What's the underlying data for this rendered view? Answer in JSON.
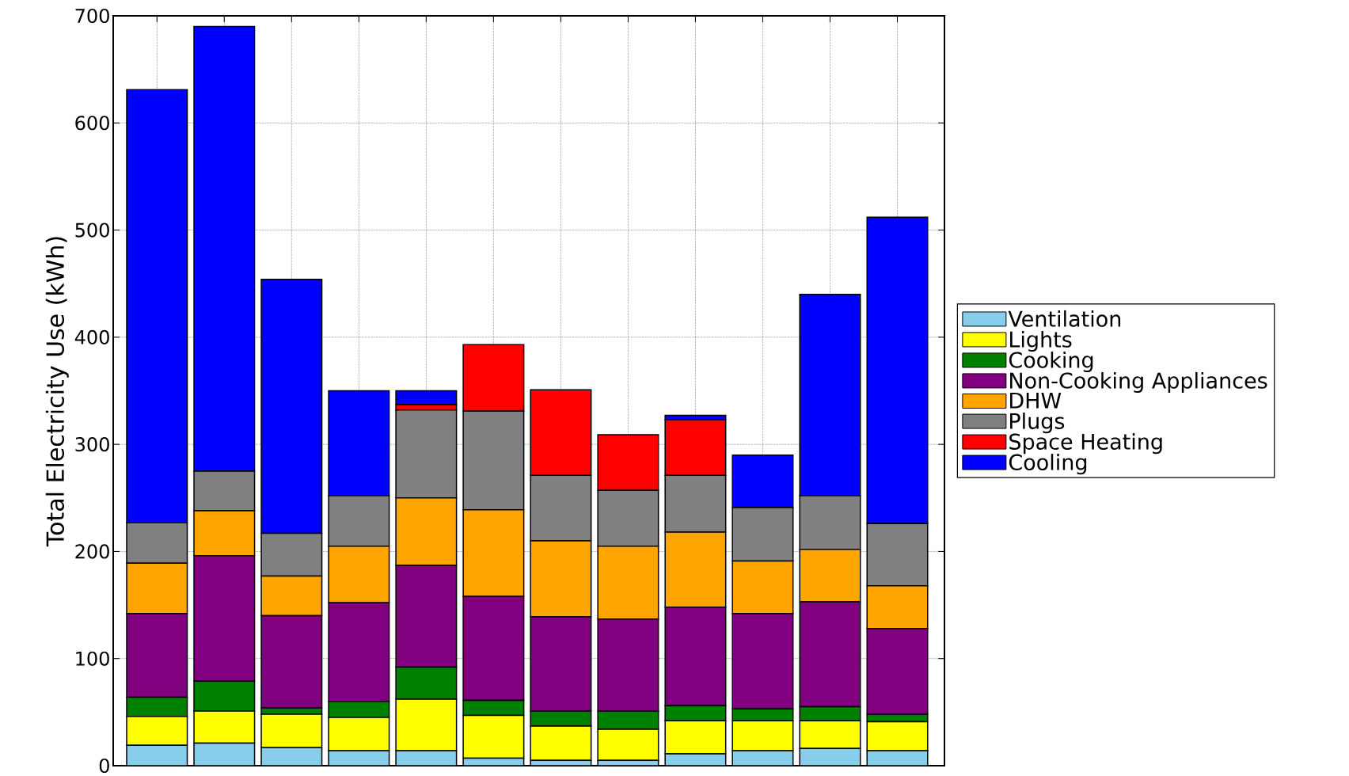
{
  "chart_data": {
    "type": "bar",
    "stacked": true,
    "ylabel": "Total Electricity Use (kWh)",
    "categories": [
      null,
      null,
      null,
      null,
      null,
      null,
      null,
      null,
      null,
      null,
      null,
      null
    ],
    "ylim": [
      0,
      700
    ],
    "yticks": [
      0,
      100,
      200,
      300,
      400,
      500,
      600,
      700
    ],
    "grid": true,
    "legend": "right",
    "tick_labels": "y",
    "series": [
      {
        "name": "Ventilation",
        "color": "#87ceeb",
        "values": [
          19,
          21,
          17,
          14,
          14,
          7,
          5,
          5,
          11,
          14,
          16,
          14
        ]
      },
      {
        "name": "Lights",
        "color": "#ffff00",
        "values": [
          27,
          30,
          31,
          31,
          48,
          40,
          32,
          29,
          31,
          28,
          26,
          27
        ]
      },
      {
        "name": "Cooking",
        "color": "#008000",
        "values": [
          18,
          28,
          6,
          15,
          30,
          14,
          14,
          17,
          14,
          11,
          13,
          7
        ]
      },
      {
        "name": "Non-Cooking Appliances",
        "color": "#800080",
        "values": [
          78,
          117,
          86,
          92,
          95,
          97,
          88,
          86,
          92,
          89,
          98,
          80
        ]
      },
      {
        "name": "DHW",
        "color": "#ffa500",
        "values": [
          47,
          42,
          37,
          53,
          63,
          81,
          71,
          68,
          70,
          49,
          49,
          40
        ]
      },
      {
        "name": "Plugs",
        "color": "#808080",
        "values": [
          38,
          37,
          40,
          47,
          82,
          92,
          61,
          52,
          53,
          50,
          50,
          58
        ]
      },
      {
        "name": "Space Heating",
        "color": "#ff0000",
        "values": [
          0,
          0,
          0,
          0,
          5,
          62,
          80,
          52,
          52,
          0,
          0,
          0
        ]
      },
      {
        "name": "Cooling",
        "color": "#0000ff",
        "values": [
          404,
          415,
          237,
          98,
          13,
          0,
          0,
          0,
          4,
          49,
          188,
          286
        ]
      }
    ]
  }
}
